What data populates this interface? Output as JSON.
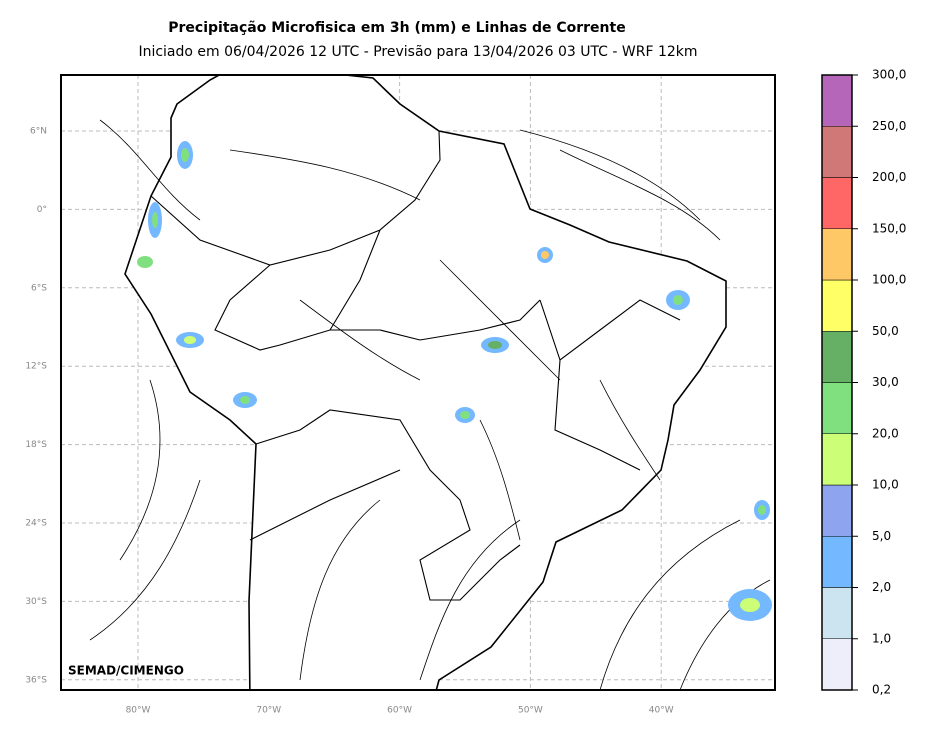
{
  "header": {
    "title": "Precipitação Microfisica em 3h (mm) e Linhas de Corrente",
    "subtitle": "Iniciado em 06/04/2026 12 UTC - Previsão para 13/04/2026 03 UTC - WRF 12km"
  },
  "map": {
    "lat_labels": [
      "6°N",
      "0°",
      "6°S",
      "12°S",
      "18°S",
      "24°S",
      "30°S",
      "36°S"
    ],
    "lon_labels": [
      "80°W",
      "70°W",
      "60°W",
      "50°W",
      "40°W"
    ],
    "credit": "SEMAD/CIMENGO"
  },
  "colorbar": {
    "labels": [
      "0,2",
      "1,0",
      "2,0",
      "5,0",
      "10,0",
      "20,0",
      "30,0",
      "50,0",
      "100,0",
      "150,0",
      "200,0",
      "250,0",
      "300,0"
    ],
    "colors": [
      "#eeeefa",
      "#cce4ef",
      "#74b9ff",
      "#8ea4ee",
      "#ccff77",
      "#80e080",
      "#66b066",
      "#ffff66",
      "#ffc866",
      "#ff6666",
      "#d07878",
      "#b566b8"
    ]
  }
}
